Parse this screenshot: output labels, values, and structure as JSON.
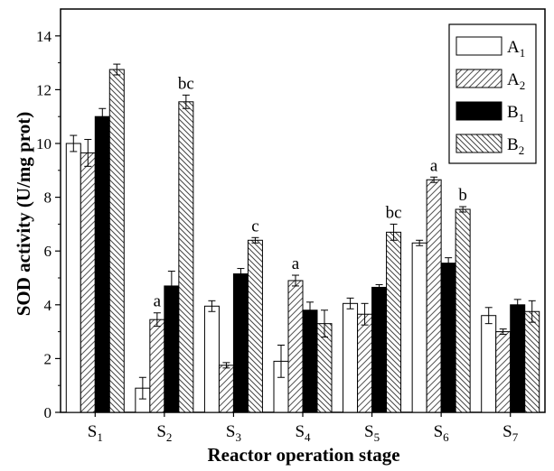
{
  "chart_data": {
    "type": "bar",
    "xlabel": "Reactor operation stage",
    "ylabel": "SOD activity (U/mg prot)",
    "ylim": [
      0,
      15
    ],
    "yticks": [
      0,
      2,
      4,
      6,
      8,
      10,
      12,
      14
    ],
    "grid": false,
    "legend_position": "top-right",
    "categories": [
      {
        "base": "S",
        "sub": "1"
      },
      {
        "base": "S",
        "sub": "2"
      },
      {
        "base": "S",
        "sub": "3"
      },
      {
        "base": "S",
        "sub": "4"
      },
      {
        "base": "S",
        "sub": "5"
      },
      {
        "base": "S",
        "sub": "6"
      },
      {
        "base": "S",
        "sub": "7"
      }
    ],
    "series": [
      {
        "name": "A1",
        "label_base": "A",
        "label_sub": "1",
        "pattern": "white",
        "values": [
          10.0,
          0.9,
          3.95,
          1.9,
          4.05,
          6.3,
          3.6
        ],
        "errors": [
          0.3,
          0.4,
          0.2,
          0.6,
          0.2,
          0.1,
          0.3
        ]
      },
      {
        "name": "A2",
        "label_base": "A",
        "label_sub": "2",
        "pattern": "hatch-right",
        "values": [
          9.65,
          3.45,
          1.75,
          4.9,
          3.65,
          8.65,
          3.0
        ],
        "errors": [
          0.5,
          0.25,
          0.1,
          0.2,
          0.4,
          0.1,
          0.1
        ]
      },
      {
        "name": "B1",
        "label_base": "B",
        "label_sub": "1",
        "pattern": "black",
        "values": [
          11.0,
          4.7,
          5.15,
          3.8,
          4.65,
          5.55,
          4.0
        ],
        "errors": [
          0.3,
          0.55,
          0.2,
          0.3,
          0.1,
          0.2,
          0.2
        ]
      },
      {
        "name": "B2",
        "label_base": "B",
        "label_sub": "2",
        "pattern": "hatch-left",
        "values": [
          12.75,
          11.55,
          6.4,
          3.3,
          6.7,
          7.55,
          3.75
        ],
        "errors": [
          0.2,
          0.25,
          0.1,
          0.5,
          0.3,
          0.1,
          0.4
        ]
      }
    ],
    "annotations": [
      {
        "text": "a",
        "category_index": 1,
        "series_index": 1
      },
      {
        "text": "bc",
        "category_index": 1,
        "series_index": 3
      },
      {
        "text": "c",
        "category_index": 2,
        "series_index": 3
      },
      {
        "text": "a",
        "category_index": 3,
        "series_index": 1
      },
      {
        "text": "bc",
        "category_index": 4,
        "series_index": 3
      },
      {
        "text": "a",
        "category_index": 5,
        "series_index": 1
      },
      {
        "text": "b",
        "category_index": 5,
        "series_index": 3
      }
    ]
  }
}
